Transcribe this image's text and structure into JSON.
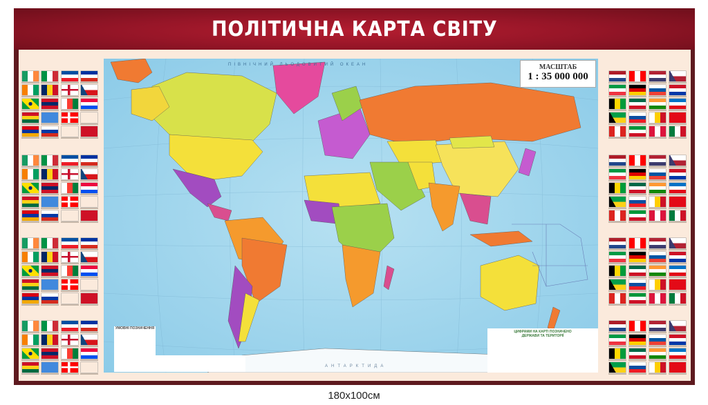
{
  "poster": {
    "title": "ПОЛІТИЧНА КАРТА СВІТУ",
    "size_caption": "180x100см",
    "colors": {
      "frame": "#5e1a1f",
      "title_bar": "#a8182a",
      "panel": "#fbeadc",
      "ocean": "#a9d8ee"
    }
  },
  "map": {
    "scale_label": "МАСШТАБ",
    "scale_value": "1 : 35 000 000",
    "ocean_labels": [
      "ПІВНІЧНИЙ ЛЬОДОВИТИЙ ОКЕАН",
      "АНТАРКТИДА"
    ],
    "legend_title": "УМОВНІ ПОЗНАЧЕННЯ",
    "numbered_list_title": "ЦИФРАМИ НА КАРТІ ПОЗНАЧЕНО ДЕРЖАВИ ТА ТЕРИТОРІЇ"
  },
  "flag_palettes": [
    [
      "h",
      "#169b62",
      "#fff",
      "#ff883e"
    ],
    [
      "h",
      "#009246",
      "#fff",
      "#ce2b37"
    ],
    [
      "v",
      "#024fa2",
      "#fff",
      "#ed1c27"
    ],
    [
      "v",
      "#0032a0",
      "#fff",
      "#d52b1e"
    ],
    [
      "h",
      "#f77f00",
      "#fff",
      "#009e60"
    ],
    [
      "h",
      "#002664",
      "#fcd116",
      "#ce1126"
    ],
    [
      "c",
      "#c8102e",
      "#fff"
    ],
    [
      "t",
      "#d7141a",
      "#fff",
      "#11457e"
    ],
    [
      "b",
      "#009c3b",
      "#ffdf00"
    ],
    [
      "v",
      "#ce1126",
      "#002868",
      "#ce1126"
    ],
    [
      "h",
      "#fff",
      "#fc3d32",
      "#007e3a"
    ],
    [
      "v",
      "#ed0a3f",
      "#fff",
      "#0050f0"
    ],
    [
      "v",
      "#ce1126",
      "#fcd116",
      "#006b3f"
    ],
    [
      "s",
      "#4189dd"
    ],
    [
      "c",
      "#fff",
      "#ff0000"
    ],
    [
      "v",
      "#fff",
      "#d52b1e"
    ],
    [
      "v",
      "#d90012",
      "#0033a0",
      "#f2a800"
    ],
    [
      "v",
      "#fff",
      "#0039a6",
      "#d52b1e"
    ],
    [
      "v",
      "#dc143c",
      "#fff"
    ],
    [
      "s",
      "#ce1126"
    ]
  ],
  "flag_palettes_right": [
    [
      "v",
      "#ae1c28",
      "#fff",
      "#21468b"
    ],
    [
      "h",
      "#ff0000",
      "#fff",
      "#ff0000"
    ],
    [
      "v",
      "#b22234",
      "#fff",
      "#3c3b6e"
    ],
    [
      "t",
      "#b22234",
      "#fff",
      "#3c3b6e"
    ],
    [
      "v",
      "#009a44",
      "#fff",
      "#ef3340"
    ],
    [
      "v",
      "#000",
      "#dd0000",
      "#ffce00"
    ],
    [
      "v",
      "#fff",
      "#0055a4",
      "#ef4135"
    ],
    [
      "v",
      "#ce1126",
      "#fff",
      "#0038a8"
    ],
    [
      "h",
      "#000",
      "#ffd700",
      "#009b3a"
    ],
    [
      "v",
      "#006847",
      "#fff",
      "#ce1126"
    ],
    [
      "v",
      "#ff9933",
      "#fff",
      "#138808"
    ],
    [
      "v",
      "#0072c6",
      "#fff",
      "#e30a17"
    ],
    [
      "t",
      "#fcd116",
      "#009e49",
      "#000"
    ],
    [
      "v",
      "#fff",
      "#0b4ea2",
      "#ee1c25"
    ],
    [
      "h",
      "#fff",
      "#ffce00",
      "#ce1126"
    ],
    [
      "s",
      "#e30a17"
    ],
    [
      "h",
      "#dc241f",
      "#fff",
      "#dc241f"
    ],
    [
      "v",
      "#009639",
      "#fff",
      "#ce1126"
    ],
    [
      "h",
      "#dc143c",
      "#fff",
      "#dc143c"
    ],
    [
      "h",
      "#007a3d",
      "#fff",
      "#ce1126"
    ]
  ]
}
